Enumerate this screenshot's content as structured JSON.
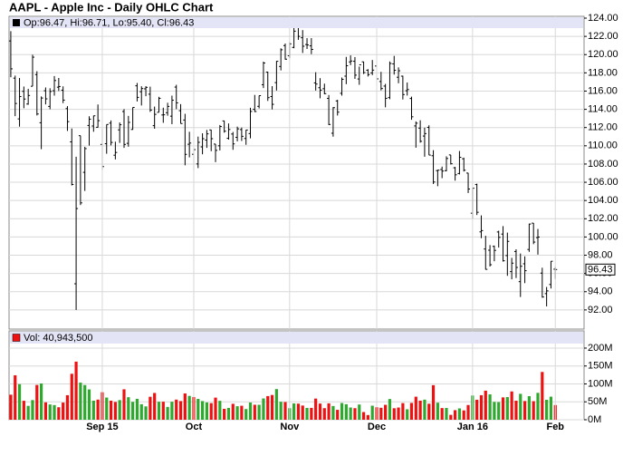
{
  "chart_data": [
    {
      "type": "ohlc",
      "title": "AAPL - Apple Inc - Daily OHLC Chart",
      "header": "Op:96.47, Hi:96.71, Lo:95.40, Cl:96.43",
      "color": "#000000",
      "grid": true,
      "xlim": [
        -0.4,
        131.6
      ],
      "ylim": [
        89.9,
        124.2
      ],
      "yticks": [
        {
          "value": 92,
          "label": "92.00"
        },
        {
          "value": 94,
          "label": "94.00"
        },
        {
          "value": 96,
          "label": "96.00"
        },
        {
          "value": 98,
          "label": "98.00"
        },
        {
          "value": 100,
          "label": "100.00"
        },
        {
          "value": 102,
          "label": "102.00"
        },
        {
          "value": 104,
          "label": "104.00"
        },
        {
          "value": 106,
          "label": "106.00"
        },
        {
          "value": 108,
          "label": "108.00"
        },
        {
          "value": 110,
          "label": "110.00"
        },
        {
          "value": 112,
          "label": "112.00"
        },
        {
          "value": 114,
          "label": "114.00"
        },
        {
          "value": 116,
          "label": "116.00"
        },
        {
          "value": 118,
          "label": "118.00"
        },
        {
          "value": 120,
          "label": "120.00"
        },
        {
          "value": 122,
          "label": "122.00"
        },
        {
          "value": 124,
          "label": "124.00"
        }
      ],
      "open": [
        121.5,
        117.42,
        112.95,
        115.97,
        114.58,
        116.53,
        117.81,
        112.53,
        116.04,
        114.32,
        116.04,
        116.43,
        116.1,
        114.08,
        110.43,
        94.87,
        111.11,
        107.09,
        112.23,
        112.17,
        112.03,
        110.15,
        110.23,
        112.49,
        108.97,
        111.75,
        113.76,
        110.27,
        111.79,
        116.58,
        115.93,
        116.25,
        115.66,
        112.21,
        113.67,
        113.38,
        113.63,
        113.25,
        116.44,
        113.85,
        112.83,
        110.17,
        109.07,
        108.01,
        109.88,
        110.63,
        111.74,
        110.19,
        110.0,
        112.73,
        110.82,
        111.29,
        110.93,
        111.78,
        110.8,
        111.34,
        114.0,
        114.33,
        116.7,
        118.08,
        115.4,
        116.93,
        118.7,
        120.99,
        119.87,
        120.79,
        123.13,
        121.85,
        121.11,
        120.96,
        116.9,
        116.37,
        116.26,
        115.2,
        111.38,
        114.92,
        115.76,
        117.64,
        119.2,
        119.27,
        117.33,
        119.21,
        118.29,
        117.99,
        118.75,
        117.05,
        116.55,
        115.29,
        118.98,
        117.52,
        117.64,
        116.04,
        115.19,
        112.18,
        111.94,
        111.07,
        112.02,
        108.91,
        107.28,
        107.4,
        107.27,
        109.0,
        107.59,
        106.96,
        108.58,
        107.01,
        102.61,
        105.75,
        100.56,
        98.68,
        98.55,
        98.97,
        100.55,
        100.32,
        97.96,
        96.2,
        98.41,
        95.1,
        97.06,
        98.63,
        101.52,
        99.93,
        96.04,
        93.79,
        94.79,
        96.47
      ],
      "high": [
        122.57,
        117.7,
        117.44,
        116.5,
        116.25,
        119.99,
        118.18,
        115.42,
        116.4,
        116.31,
        117.65,
        117.44,
        116.52,
        114.35,
        111.9,
        108.8,
        111.11,
        109.89,
        113.24,
        113.31,
        114.53,
        111.88,
        112.34,
        112.78,
        110.45,
        112.56,
        114.02,
        113.28,
        114.21,
        116.89,
        116.53,
        116.54,
        116.49,
        114.3,
        115.37,
        114.18,
        114.72,
        115.5,
        116.69,
        114.57,
        113.51,
        111.54,
        109.62,
        111.01,
        111.37,
        111.74,
        111.77,
        110.19,
        112.28,
        112.75,
        112.45,
        111.52,
        112.1,
        112.0,
        111.75,
        114.17,
        115.58,
        115.5,
        119.23,
        118.13,
        116.54,
        119.3,
        120.69,
        121.22,
        121.36,
        123.49,
        123.82,
        122.69,
        121.81,
        121.81,
        118.07,
        117.42,
        116.82,
        115.57,
        114.24,
        115.05,
        117.49,
        119.75,
        119.92,
        119.73,
        118.69,
        119.23,
        118.41,
        119.41,
        118.81,
        118.11,
        116.79,
        119.25,
        119.86,
        118.6,
        117.69,
        116.94,
        115.39,
        112.68,
        112.8,
        111.99,
        112.25,
        109.52,
        107.37,
        107.72,
        108.85,
        109.0,
        107.69,
        109.43,
        108.7,
        107.03,
        105.37,
        105.85,
        102.37,
        100.13,
        99.11,
        99.06,
        100.69,
        101.19,
        100.48,
        97.71,
        98.65,
        98.19,
        97.88,
        101.46,
        101.53,
        100.88,
        96.63,
        94.52,
        97.34,
        96.71
      ],
      "low": [
        117.52,
        113.25,
        112.1,
        114.12,
        114.5,
        116.53,
        113.33,
        109.63,
        114.54,
        114.01,
        115.5,
        116.01,
        114.68,
        111.63,
        105.65,
        92.0,
        103.5,
        105.05,
        110.02,
        111.54,
        112.0,
        107.36,
        109.13,
        110.04,
        108.51,
        110.32,
        109.77,
        109.9,
        111.76,
        114.86,
        114.42,
        115.44,
        113.72,
        111.87,
        113.66,
        112.52,
        113.3,
        112.37,
        114.02,
        112.44,
        107.86,
        108.73,
        107.31,
        107.55,
        109.07,
        109.77,
        109.41,
        108.21,
        109.49,
        111.44,
        110.68,
        109.56,
        110.49,
        110.53,
        110.11,
        110.82,
        113.7,
        114.1,
        116.33,
        114.92,
        113.99,
        116.06,
        118.27,
        119.45,
        119.61,
        120.7,
        121.62,
        120.18,
        120.62,
        120.05,
        116.06,
        115.21,
        115.65,
        112.27,
        111.0,
        113.32,
        115.5,
        116.76,
        118.85,
        117.34,
        116.69,
        117.87,
        117.6,
        117.75,
        116.86,
        116.08,
        114.22,
        115.11,
        117.81,
        116.86,
        115.08,
        115.51,
        112.85,
        109.79,
        110.35,
        108.8,
        108.98,
        105.81,
        105.57,
        106.45,
        107.2,
        107.95,
        106.18,
        106.86,
        107.18,
        104.82,
        102.0,
        102.41,
        99.87,
        96.43,
        96.76,
        97.34,
        98.84,
        97.3,
        95.74,
        95.36,
        95.5,
        93.42,
        94.94,
        98.37,
        99.21,
        98.07,
        93.34,
        92.39,
        94.35,
        95.4
      ],
      "close": [
        118.44,
        114.64,
        115.4,
        115.13,
        115.52,
        119.72,
        113.49,
        115.24,
        115.15,
        115.96,
        117.16,
        116.5,
        115.01,
        112.65,
        105.76,
        103.12,
        103.74,
        109.69,
        112.92,
        113.29,
        112.76,
        107.72,
        112.34,
        110.37,
        109.27,
        112.31,
        110.15,
        112.57,
        114.21,
        115.31,
        116.28,
        116.41,
        113.92,
        113.45,
        115.21,
        113.4,
        114.32,
        115.0,
        114.71,
        112.44,
        109.06,
        110.3,
        109.58,
        110.38,
        110.78,
        111.31,
        110.78,
        109.5,
        112.12,
        111.6,
        111.79,
        110.21,
        111.86,
        111.04,
        111.73,
        113.77,
        113.76,
        115.5,
        119.08,
        115.28,
        114.55,
        119.27,
        120.53,
        119.5,
        121.18,
        122.57,
        122.0,
        120.92,
        121.06,
        120.57,
        116.77,
        116.11,
        115.72,
        112.34,
        114.18,
        113.69,
        117.29,
        118.78,
        119.3,
        117.75,
        118.88,
        118.03,
        117.81,
        118.3,
        117.34,
        116.28,
        115.2,
        119.03,
        118.28,
        118.23,
        115.62,
        116.17,
        113.18,
        112.48,
        110.49,
        111.34,
        108.98,
        106.03,
        107.33,
        107.23,
        108.61,
        108.03,
        106.82,
        108.74,
        107.32,
        105.26,
        105.35,
        102.71,
        100.7,
        96.45,
        96.96,
        98.53,
        99.96,
        97.39,
        99.52,
        97.13,
        96.66,
        96.79,
        96.3,
        101.42,
        99.44,
        99.99,
        93.42,
        94.09,
        97.34,
        96.43
      ]
    },
    {
      "type": "bar",
      "label": "Vol: 40,943,500",
      "up_color": "#2ea82e",
      "down_color": "#ee1111",
      "grid": true,
      "xlim": [
        -0.4,
        131.6
      ],
      "ylim": [
        0,
        248
      ],
      "yticks": [
        {
          "value": 0,
          "label": "0M"
        },
        {
          "value": 50,
          "label": "50M"
        },
        {
          "value": 100,
          "label": "100M"
        },
        {
          "value": 150,
          "label": "150M"
        },
        {
          "value": 200,
          "label": "200M"
        }
      ],
      "xticks": [
        {
          "value": 21,
          "label": "Sep 15"
        },
        {
          "value": 42,
          "label": "Oct"
        },
        {
          "value": 64,
          "label": "Nov"
        },
        {
          "value": 84,
          "label": "Dec"
        },
        {
          "value": 106,
          "label": "Jan 16"
        },
        {
          "value": 125,
          "label": "Feb"
        }
      ],
      "values": [
        69.9,
        124.1,
        99.3,
        52.9,
        38.7,
        54.9,
        97.1,
        101.2,
        48.5,
        42.6,
        40.9,
        34.9,
        47.9,
        68.5,
        128.3,
        162.2,
        103.6,
        96.8,
        84.6,
        53.2,
        56.2,
        76.8,
        61.9,
        53.2,
        49.6,
        54.8,
        85.0,
        62.9,
        49.9,
        58.4,
        43.3,
        37.2,
        64.1,
        74.7,
        50.2,
        50.3,
        35.8,
        50.2,
        56.2,
        52.1,
        73.4,
        66.5,
        63.4,
        58.2,
        52.1,
        48.2,
        46.4,
        61.7,
        52.8,
        30.5,
        33.0,
        44.5,
        37.7,
        39.0,
        29.8,
        48.0,
        41.8,
        41.7,
        59.4,
        66.0,
        69.1,
        85.6,
        50.2,
        49.4,
        32.2,
        45.5,
        44.9,
        39.6,
        33.0,
        33.1,
        59.1,
        45.2,
        32.3,
        45.8,
        38.3,
        27.7,
        46.7,
        43.3,
        34.1,
        32.3,
        42.4,
        21.4,
        13.1,
        39.2,
        34.9,
        33.4,
        41.6,
        57.8,
        32.1,
        34.1,
        46.4,
        29.2,
        46.9,
        64.3,
        53.3,
        56.1,
        44.7,
        96.5,
        47.6,
        32.6,
        32.8,
        13.6,
        26.7,
        31.6,
        26.0,
        41.1,
        67.6,
        55.8,
        68.5,
        81.1,
        70.8,
        49.7,
        49.2,
        62.4,
        63.2,
        79.0,
        53.1,
        72.3,
        52.2,
        65.8,
        51.8,
        75.1,
        133.4,
        55.7,
        64.4,
        40.9435
      ]
    }
  ]
}
